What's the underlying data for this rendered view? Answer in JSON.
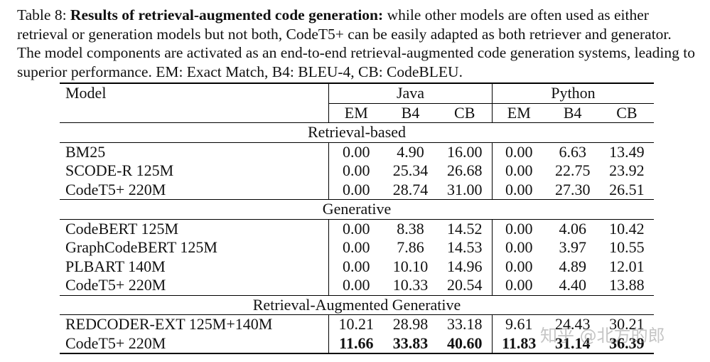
{
  "caption": {
    "label": "Table 8: ",
    "bold": "Results of retrieval-augmented code generation:",
    "text": " while other models are often used as either retrieval or generation models but not both, CodeT5+ can be easily adapted as both retriever and generator. The model components are activated as an end-to-end retrieval-augmented code generation systems, leading to superior performance. EM: Exact Match, B4: BLEU-4, CB: CodeBLEU."
  },
  "table": {
    "model_header": "Model",
    "java_header": "Java",
    "python_header": "Python",
    "metrics": [
      "EM",
      "B4",
      "CB",
      "EM",
      "B4",
      "CB"
    ],
    "sections": [
      {
        "title": "Retrieval-based",
        "rows": [
          {
            "model": "BM25",
            "values": [
              "0.00",
              "4.90",
              "16.00",
              "0.00",
              "6.63",
              "13.49"
            ],
            "bold": [
              false,
              false,
              false,
              false,
              false,
              false
            ]
          },
          {
            "model": "SCODE-R 125M",
            "values": [
              "0.00",
              "25.34",
              "26.68",
              "0.00",
              "22.75",
              "23.92"
            ],
            "bold": [
              false,
              false,
              false,
              false,
              false,
              false
            ]
          },
          {
            "model": "CodeT5+ 220M",
            "values": [
              "0.00",
              "28.74",
              "31.00",
              "0.00",
              "27.30",
              "26.51"
            ],
            "bold": [
              false,
              false,
              false,
              false,
              false,
              false
            ]
          }
        ]
      },
      {
        "title": "Generative",
        "rows": [
          {
            "model": "CodeBERT 125M",
            "values": [
              "0.00",
              "8.38",
              "14.52",
              "0.00",
              "4.06",
              "10.42"
            ],
            "bold": [
              false,
              false,
              false,
              false,
              false,
              false
            ]
          },
          {
            "model": "GraphCodeBERT 125M",
            "values": [
              "0.00",
              "7.86",
              "14.53",
              "0.00",
              "3.97",
              "10.55"
            ],
            "bold": [
              false,
              false,
              false,
              false,
              false,
              false
            ]
          },
          {
            "model": "PLBART 140M",
            "values": [
              "0.00",
              "10.10",
              "14.96",
              "0.00",
              "4.89",
              "12.01"
            ],
            "bold": [
              false,
              false,
              false,
              false,
              false,
              false
            ]
          },
          {
            "model": "CodeT5+ 220M",
            "values": [
              "0.00",
              "10.33",
              "20.54",
              "0.00",
              "4.40",
              "13.88"
            ],
            "bold": [
              false,
              false,
              false,
              false,
              false,
              false
            ]
          }
        ]
      },
      {
        "title": "Retrieval-Augmented Generative",
        "rows": [
          {
            "model": "REDCODER-EXT 125M+140M",
            "values": [
              "10.21",
              "28.98",
              "33.18",
              "9.61",
              "24.43",
              "30.21"
            ],
            "bold": [
              false,
              false,
              false,
              false,
              false,
              false
            ]
          },
          {
            "model": "CodeT5+ 220M",
            "values": [
              "11.66",
              "33.83",
              "40.60",
              "11.83",
              "31.14",
              "36.39"
            ],
            "bold": [
              true,
              true,
              true,
              true,
              true,
              true
            ]
          }
        ]
      }
    ]
  },
  "watermark": "知乎 @北方的郎"
}
